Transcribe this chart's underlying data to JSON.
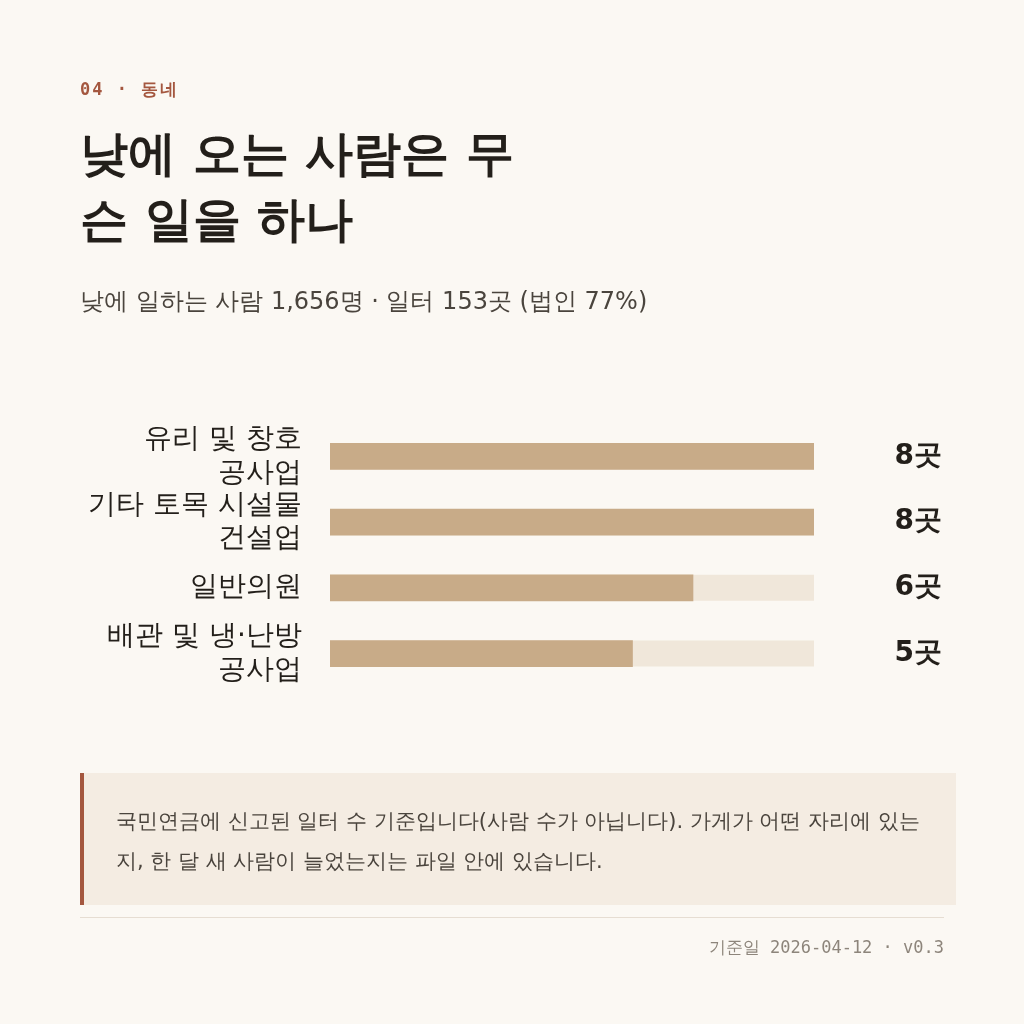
{
  "chart_data": {
    "type": "bar",
    "orientation": "horizontal",
    "title": "낮에 오는 사람은 무슨 일을 하나",
    "subtitle": "낮에 일하는 사람 1,656명 · 일터 153곳 (법인 77%)",
    "categories": [
      "유리 및 창호 공사업",
      "기타 토목 시설물 건설업",
      "일반의원",
      "배관 및 냉·난방 공사업"
    ],
    "values": [
      8,
      8,
      6,
      5
    ],
    "value_labels": [
      "8곳",
      "8곳",
      "6곳",
      "5곳"
    ],
    "color": "#c8ab88",
    "xlim": [
      0,
      8
    ],
    "grid": false,
    "legend": false,
    "tick_labels": "y",
    "annotations": [
      "04 · 동네",
      "국민연금에 신고된 일터 수 기준입니다(사람 수가 아닙니다). 가게가 어떤 자리에 있는지, 한 달 새 사람이 늘었는지는 파일 안에 있습니다.",
      "기준일 2026-04-12 · v0.3"
    ]
  }
}
